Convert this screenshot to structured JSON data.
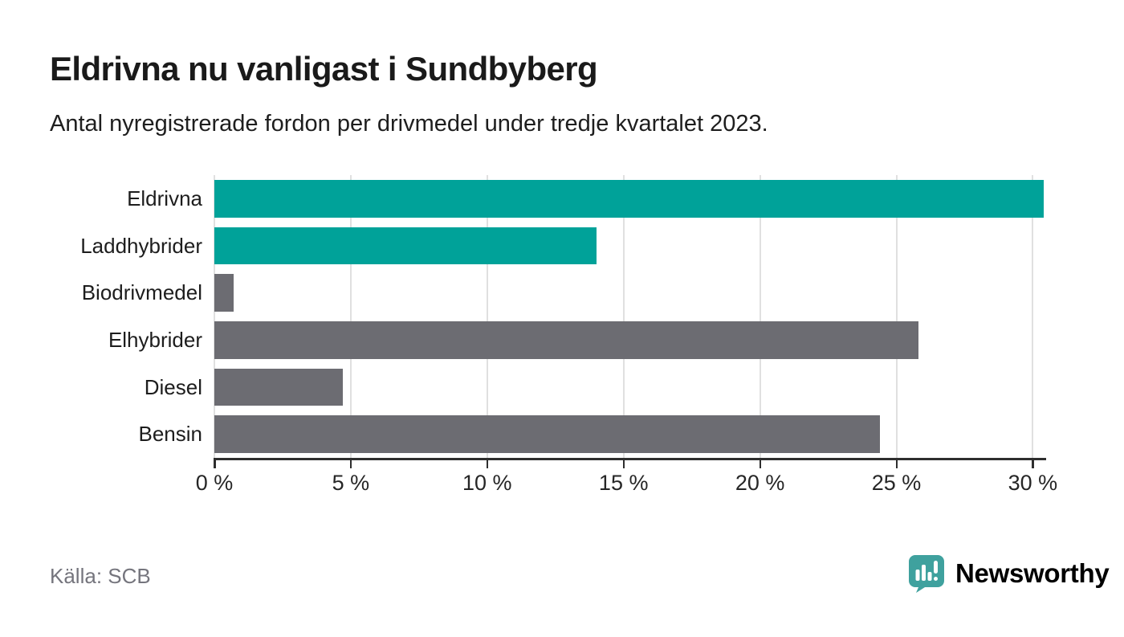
{
  "header": {
    "title": "Eldrivna nu vanligast i Sundbyberg",
    "subtitle": "Antal nyregistrerade fordon per drivmedel under tredje kvartalet 2023."
  },
  "chart_data": {
    "type": "bar",
    "orientation": "horizontal",
    "title": "Eldrivna nu vanligast i Sundbyberg",
    "subtitle": "Antal nyregistrerade fordon per drivmedel under tredje kvartalet 2023.",
    "categories": [
      "Eldrivna",
      "Laddhybrider",
      "Biodrivmedel",
      "Elhybrider",
      "Diesel",
      "Bensin"
    ],
    "values": [
      30.4,
      14.0,
      0.7,
      25.8,
      4.7,
      24.4
    ],
    "unit": "%",
    "bar_colors": [
      "#00A299",
      "#00A299",
      "#6C6C72",
      "#6C6C72",
      "#6C6C72",
      "#6C6C72"
    ],
    "xlabel": "",
    "ylabel": "",
    "xlim": [
      0,
      30.4
    ],
    "xticks": [
      0,
      5,
      10,
      15,
      20,
      25,
      30
    ],
    "xtick_labels": [
      "0 %",
      "5 %",
      "10 %",
      "15 %",
      "20 %",
      "25 %",
      "30 %"
    ],
    "grid": true,
    "legend_position": "none"
  },
  "colors": {
    "highlight": "#00A299",
    "neutral": "#6C6C72",
    "gridline": "#e0e0e0",
    "axis": "#2e2e2e",
    "brand": "#3BA19E"
  },
  "footer": {
    "source": "Källa: SCB",
    "brand": "Newsworthy",
    "brand_icon": "bar-chart-speech-bubble-icon"
  }
}
